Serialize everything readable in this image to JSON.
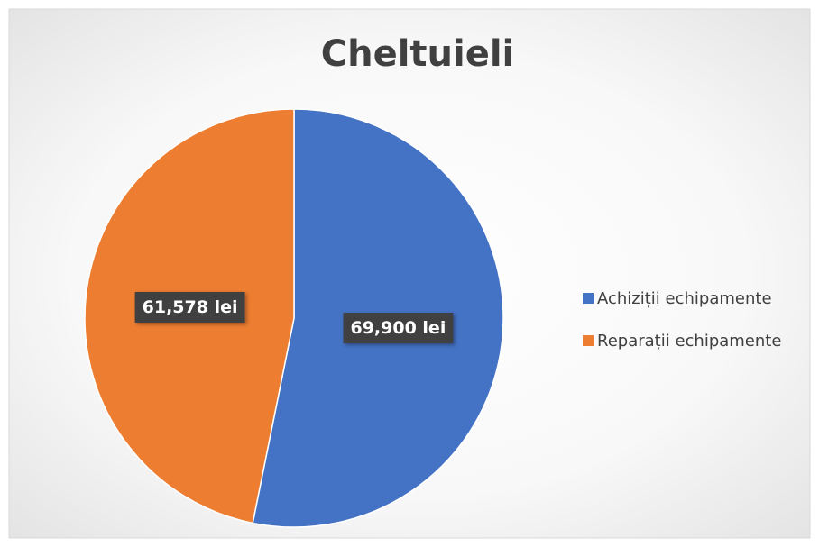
{
  "chart_data": {
    "type": "pie",
    "title": "Cheltuieli",
    "categories": [
      "Achiziții echipamente",
      "Reparații echipamente"
    ],
    "values": [
      69900,
      61578
    ],
    "value_labels": [
      "69,900 lei",
      "61,578 lei"
    ],
    "colors": [
      "#4472c4",
      "#ed7d31"
    ],
    "legend": "right"
  }
}
